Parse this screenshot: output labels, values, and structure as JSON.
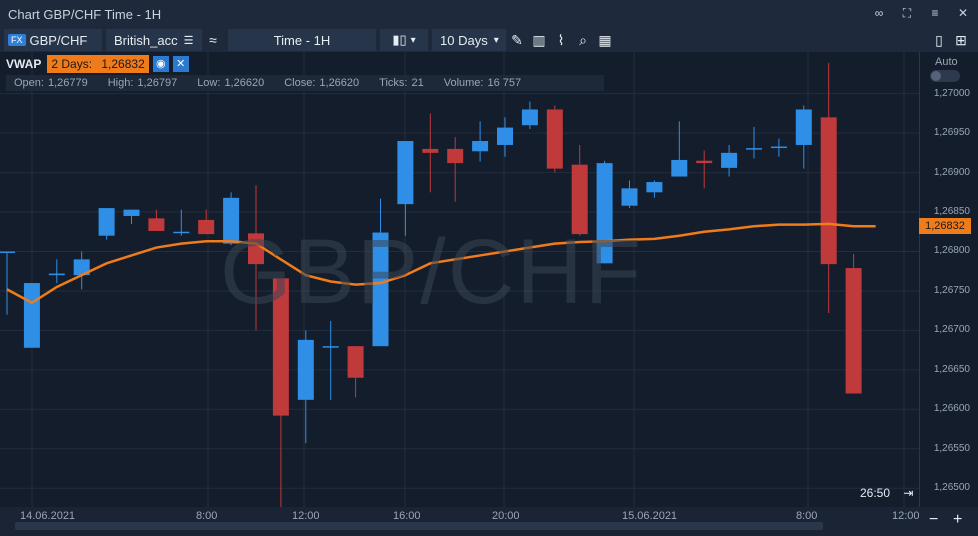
{
  "window": {
    "title": "Chart GBP/CHF Time - 1H"
  },
  "toolbar": {
    "fx_badge": "FX",
    "symbol": "GBP/CHF",
    "account": "British_acc",
    "timeframe": "Time - 1H",
    "range": "10 Days"
  },
  "indicator": {
    "name": "VWAP",
    "label": "2 Days:",
    "value": "1,26832"
  },
  "ohlc": {
    "open_label": "Open:",
    "open": "1,26779",
    "high_label": "High:",
    "high": "1,26797",
    "low_label": "Low:",
    "low": "1,26620",
    "close_label": "Close:",
    "close": "1,26620",
    "ticks_label": "Ticks:",
    "ticks": "21",
    "volume_label": "Volume:",
    "volume": "16 757"
  },
  "watermark": "GBP/CHF",
  "auto_label": "Auto",
  "countdown": "26:50",
  "current_price": "1,26832",
  "price_axis": [
    "1,27000",
    "1,26950",
    "1,26900",
    "1,26850",
    "1,26800",
    "1,26750",
    "1,26700",
    "1,26650",
    "1,26600",
    "1,26550",
    "1,26500"
  ],
  "time_axis": [
    {
      "label": "14.06.2021",
      "x": 20
    },
    {
      "label": "8:00",
      "x": 196
    },
    {
      "label": "12:00",
      "x": 292
    },
    {
      "label": "16:00",
      "x": 393
    },
    {
      "label": "20:00",
      "x": 492
    },
    {
      "label": "15.06.2021",
      "x": 622
    },
    {
      "label": "8:00",
      "x": 796
    },
    {
      "label": "12:00",
      "x": 892
    }
  ],
  "colors": {
    "up": "#2f8fe6",
    "down": "#c0393b",
    "vwap": "#f07b1a",
    "grid": "#222d3d"
  },
  "chart_data": {
    "type": "candlestick",
    "ylim": [
      1.2648,
      1.2703
    ],
    "candles": [
      {
        "o": 1.268,
        "h": 1.268,
        "l": 1.2672,
        "c": 1.268
      },
      {
        "o": 1.26678,
        "h": 1.2676,
        "l": 1.26678,
        "c": 1.2676
      },
      {
        "o": 1.2677,
        "h": 1.2679,
        "l": 1.2676,
        "c": 1.26772
      },
      {
        "o": 1.2677,
        "h": 1.268,
        "l": 1.26752,
        "c": 1.2679
      },
      {
        "o": 1.2682,
        "h": 1.26855,
        "l": 1.26815,
        "c": 1.26855
      },
      {
        "o": 1.26845,
        "h": 1.26853,
        "l": 1.26835,
        "c": 1.26853
      },
      {
        "o": 1.26842,
        "h": 1.26853,
        "l": 1.26826,
        "c": 1.26826
      },
      {
        "o": 1.26825,
        "h": 1.26853,
        "l": 1.2682,
        "c": 1.26825
      },
      {
        "o": 1.2684,
        "h": 1.26853,
        "l": 1.26822,
        "c": 1.26822
      },
      {
        "o": 1.2681,
        "h": 1.26875,
        "l": 1.26808,
        "c": 1.26868
      },
      {
        "o": 1.26823,
        "h": 1.26884,
        "l": 1.267,
        "c": 1.26784
      },
      {
        "o": 1.26766,
        "h": 1.26766,
        "l": 1.26474,
        "c": 1.26592
      },
      {
        "o": 1.26612,
        "h": 1.267,
        "l": 1.26557,
        "c": 1.26688
      },
      {
        "o": 1.2668,
        "h": 1.26712,
        "l": 1.26612,
        "c": 1.2668
      },
      {
        "o": 1.2668,
        "h": 1.2668,
        "l": 1.26615,
        "c": 1.2664
      },
      {
        "o": 1.2668,
        "h": 1.26867,
        "l": 1.2668,
        "c": 1.26824
      },
      {
        "o": 1.2686,
        "h": 1.2694,
        "l": 1.2682,
        "c": 1.2694
      },
      {
        "o": 1.2693,
        "h": 1.26975,
        "l": 1.26875,
        "c": 1.26925
      },
      {
        "o": 1.2693,
        "h": 1.26945,
        "l": 1.26863,
        "c": 1.26912
      },
      {
        "o": 1.26927,
        "h": 1.26965,
        "l": 1.26914,
        "c": 1.2694
      },
      {
        "o": 1.26935,
        "h": 1.2697,
        "l": 1.2692,
        "c": 1.26957
      },
      {
        "o": 1.2696,
        "h": 1.2699,
        "l": 1.26955,
        "c": 1.2698
      },
      {
        "o": 1.2698,
        "h": 1.26985,
        "l": 1.269,
        "c": 1.26905
      },
      {
        "o": 1.2691,
        "h": 1.26935,
        "l": 1.2682,
        "c": 1.26822
      },
      {
        "o": 1.26785,
        "h": 1.26915,
        "l": 1.26785,
        "c": 1.26912
      },
      {
        "o": 1.26858,
        "h": 1.2689,
        "l": 1.26855,
        "c": 1.2688
      },
      {
        "o": 1.26875,
        "h": 1.2689,
        "l": 1.26868,
        "c": 1.26888
      },
      {
        "o": 1.26895,
        "h": 1.26965,
        "l": 1.26895,
        "c": 1.26916
      },
      {
        "o": 1.26915,
        "h": 1.26928,
        "l": 1.2688,
        "c": 1.26912
      },
      {
        "o": 1.26906,
        "h": 1.26935,
        "l": 1.26895,
        "c": 1.26925
      },
      {
        "o": 1.26931,
        "h": 1.26958,
        "l": 1.26918,
        "c": 1.26931
      },
      {
        "o": 1.26933,
        "h": 1.26943,
        "l": 1.2692,
        "c": 1.26933
      },
      {
        "o": 1.26935,
        "h": 1.26985,
        "l": 1.26905,
        "c": 1.2698
      },
      {
        "o": 1.2697,
        "h": 1.27039,
        "l": 1.26722,
        "c": 1.26784
      },
      {
        "o": 1.26779,
        "h": 1.26797,
        "l": 1.2662,
        "c": 1.2662
      }
    ],
    "vwap": [
      1.26752,
      1.26735,
      1.26755,
      1.2677,
      1.26785,
      1.26795,
      1.26805,
      1.2681,
      1.26813,
      1.26813,
      1.2681,
      1.2679,
      1.2677,
      1.26762,
      1.26758,
      1.2676,
      1.2677,
      1.26785,
      1.2679,
      1.26795,
      1.268,
      1.26805,
      1.2681,
      1.26812,
      1.26813,
      1.26815,
      1.26816,
      1.2682,
      1.26825,
      1.26828,
      1.26832,
      1.26834,
      1.26834,
      1.26835,
      1.26832
    ]
  }
}
